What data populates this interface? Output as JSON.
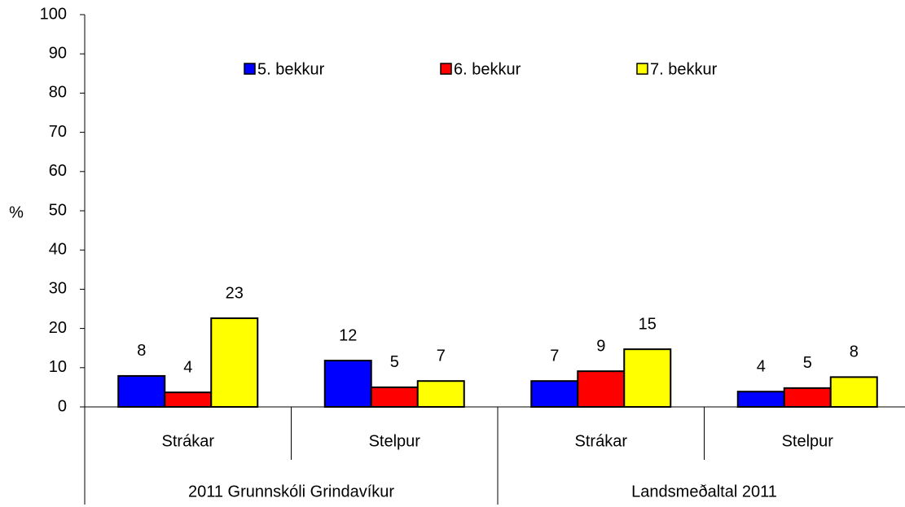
{
  "chart_data": {
    "type": "bar",
    "ylabel": "%",
    "categories": [
      "Strákar",
      "Stelpur",
      "Strákar",
      "Stelpur"
    ],
    "groups": [
      "2011 Grunnskóli Grindavíkur",
      "Landsmeðaltal 2011"
    ],
    "series": [
      {
        "name": "5. bekkur",
        "color": "#0000ff",
        "values": [
          7.9,
          11.8,
          6.6,
          3.9
        ],
        "value_labels": [
          "8",
          "12",
          "7",
          "4"
        ]
      },
      {
        "name": "6. bekkur",
        "color": "#ff0000",
        "values": [
          3.7,
          5.0,
          9.1,
          4.8
        ],
        "value_labels": [
          "4",
          "5",
          "9",
          "5"
        ]
      },
      {
        "name": "7. bekkur",
        "color": "#ffff00",
        "values": [
          22.6,
          6.6,
          14.7,
          7.6
        ],
        "value_labels": [
          "23",
          "7",
          "15",
          "8"
        ]
      }
    ],
    "ylim": [
      0,
      100
    ],
    "yticks": [
      0,
      10,
      20,
      30,
      40,
      50,
      60,
      70,
      80,
      90,
      100
    ],
    "legend": "top"
  }
}
